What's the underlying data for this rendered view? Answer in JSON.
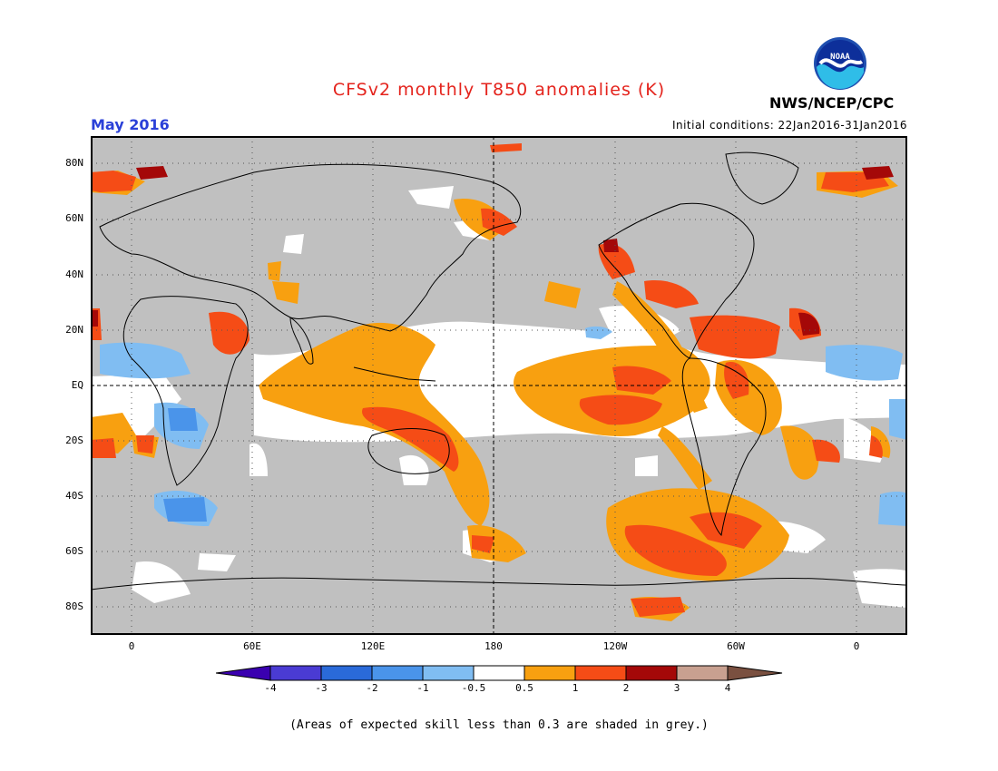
{
  "header": {
    "title": "CFSv2 monthly T850 anomalies (K)",
    "month": "May 2016",
    "initial_conditions": "Initial conditions: 22Jan2016-31Jan2016",
    "agency": "NWS/NCEP/CPC",
    "logo_text": "NOAA"
  },
  "axes": {
    "lat_labels": [
      "80N",
      "60N",
      "40N",
      "20N",
      "EQ",
      "20S",
      "40S",
      "60S",
      "80S"
    ],
    "lon_labels": [
      "0",
      "60E",
      "120E",
      "180",
      "120W",
      "60W",
      "0"
    ]
  },
  "colorbar": {
    "labels": [
      "-4",
      "-3",
      "-2",
      "-1",
      "-0.5",
      "0.5",
      "1",
      "2",
      "3",
      "4"
    ],
    "colors": [
      "#3a00b0",
      "#4a3bd3",
      "#2a6ad9",
      "#4a94ea",
      "#80bdf2",
      "#ffffff",
      "#f8a010",
      "#f54c16",
      "#a40808",
      "#c8a090",
      "#7a5040"
    ]
  },
  "map": {
    "skill_mask_color": "#c0c0c0",
    "land_outline_color": "#000000"
  },
  "footnote": "(Areas of expected skill less than 0.3 are shaded in grey.)"
}
